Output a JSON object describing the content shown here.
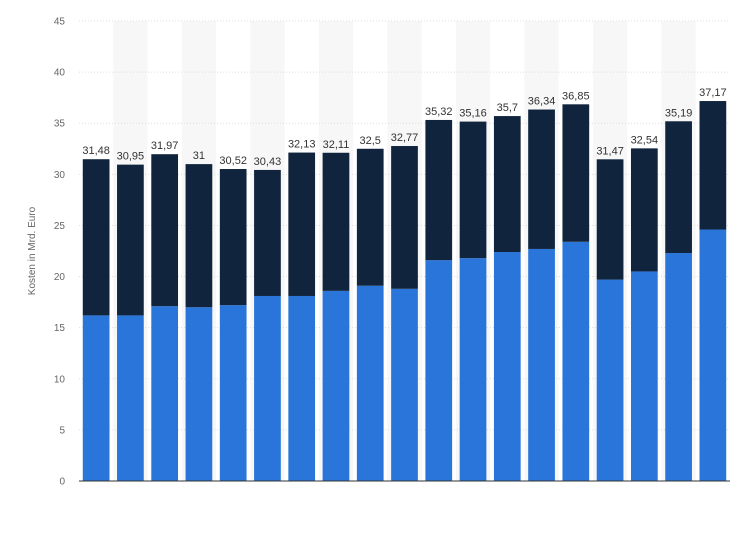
{
  "chart_data": {
    "type": "bar",
    "stacked": true,
    "title": "",
    "xlabel": "",
    "ylabel": "Kosten in Mrd. Euro",
    "ylim": [
      0,
      45
    ],
    "y_ticks": [
      0,
      5,
      10,
      15,
      20,
      25,
      30,
      35,
      40,
      45
    ],
    "categories": [
      "",
      "",
      "",
      "",
      "",
      "",
      "",
      "",
      "",
      "",
      "",
      "",
      "",
      "",
      "",
      "",
      "",
      "",
      ""
    ],
    "series": [
      {
        "color": "#2a75da",
        "values": [
          16.2,
          16.2,
          17.1,
          17.0,
          17.2,
          18.1,
          18.1,
          18.6,
          19.1,
          18.8,
          21.6,
          21.8,
          22.4,
          22.7,
          23.4,
          19.7,
          20.5,
          22.3,
          24.6
        ]
      },
      {
        "color": "#10253d",
        "values": [
          15.28,
          14.75,
          14.87,
          14.0,
          13.32,
          12.33,
          14.03,
          13.51,
          13.4,
          13.97,
          13.72,
          13.36,
          13.3,
          13.64,
          13.45,
          11.77,
          12.04,
          12.89,
          12.57
        ]
      }
    ],
    "totals": [
      31.48,
      30.95,
      31.97,
      31,
      30.52,
      30.43,
      32.13,
      32.11,
      32.5,
      32.77,
      35.32,
      35.16,
      35.7,
      36.34,
      36.85,
      31.47,
      32.54,
      35.19,
      37.17
    ],
    "total_labels": [
      "31,48",
      "30,95",
      "31,97",
      "31",
      "30,52",
      "30,43",
      "32,13",
      "32,11",
      "32,5",
      "32,77",
      "35,32",
      "35,16",
      "35,7",
      "36,34",
      "36,85",
      "31,47",
      "32,54",
      "35,19",
      "37,17"
    ],
    "grid": true,
    "legend": "none",
    "colors": {
      "background": "#ffffff",
      "band": "#f7f7f7",
      "grid": "#dddddd",
      "axis": "#333333"
    }
  }
}
